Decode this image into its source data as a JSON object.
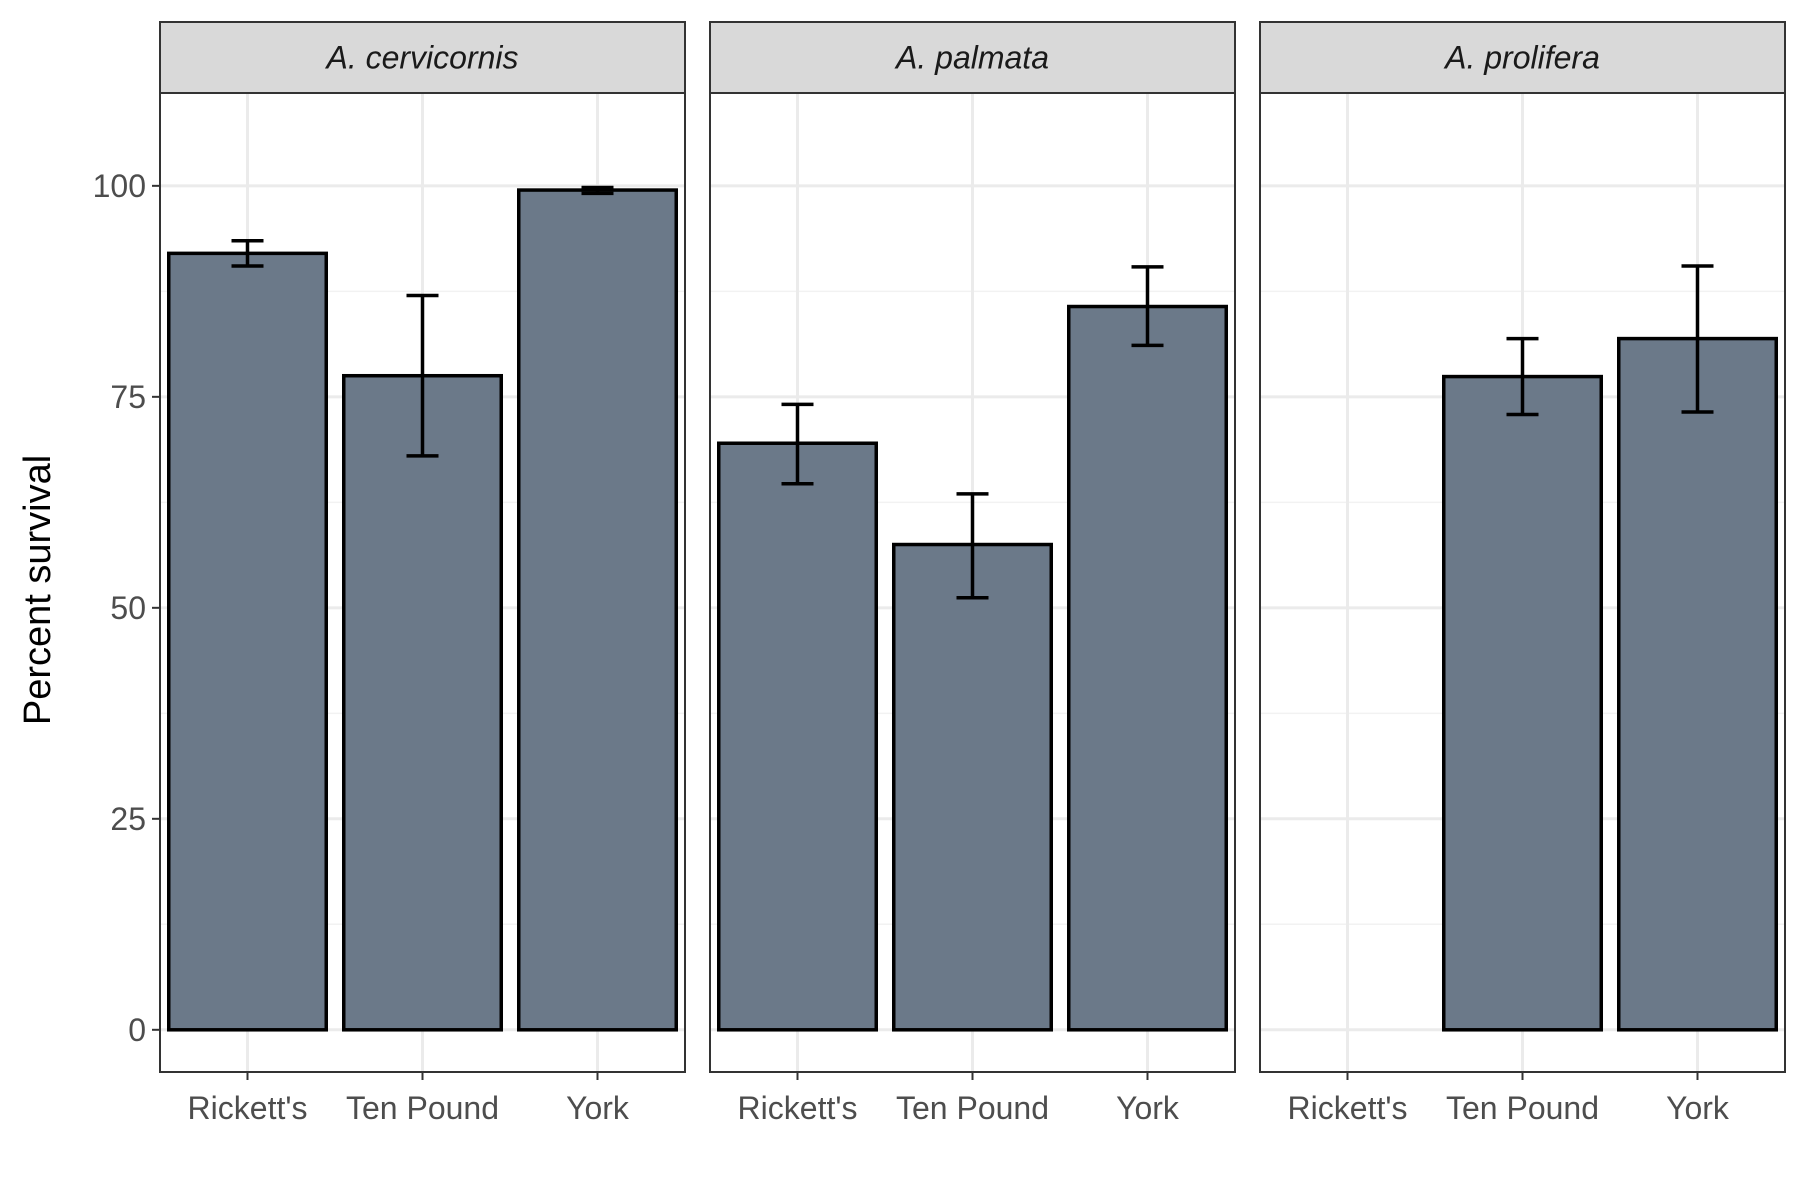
{
  "chart_data": {
    "type": "bar",
    "facet_by": "species",
    "xlabel": "",
    "ylabel": "Percent survival",
    "ylim": [
      -5,
      111
    ],
    "yticks": [
      0,
      25,
      50,
      75,
      100
    ],
    "grid": true,
    "categories": [
      "Rickett's",
      "Ten Pound",
      "York"
    ],
    "facets": [
      {
        "label": "A. cervicornis",
        "values": [
          92,
          77.5,
          99.5
        ],
        "error_low": [
          90.5,
          68,
          99.1
        ],
        "error_high": [
          93.5,
          87,
          99.8
        ]
      },
      {
        "label": "A. palmata",
        "values": [
          69.5,
          57.5,
          85.7
        ],
        "error_low": [
          64.7,
          51.2,
          81.1
        ],
        "error_high": [
          74.1,
          63.5,
          90.4
        ]
      },
      {
        "label": "A. prolifera",
        "values": [
          null,
          77.4,
          81.9
        ],
        "error_low": [
          null,
          72.9,
          73.2
        ],
        "error_high": [
          null,
          81.9,
          90.5
        ]
      }
    ],
    "colors": {
      "bar_fill": "#6b7989",
      "bar_stroke": "#000000",
      "strip_fill": "#d9d9d9",
      "grid_major": "#ebebeb",
      "grid_minor": "#f2f2f2"
    }
  }
}
